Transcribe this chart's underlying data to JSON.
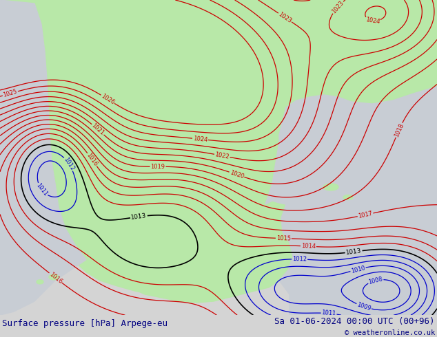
{
  "title_left": "Surface pressure [hPa] Arpege-eu",
  "title_right": "Sa 01-06-2024 00:00 UTC (00+96)",
  "copyright": "© weatheronline.co.uk",
  "bg_color": "#d4d4d4",
  "land_color": "#b8e8a8",
  "ocean_color": "#c8cdd4",
  "bottom_bar_color": "#e0e0e0",
  "bottom_text_color": "#000080",
  "text_color_red": "#cc0000",
  "text_color_blue": "#0000cc",
  "text_color_black": "#000000",
  "figsize": [
    6.34,
    4.9
  ],
  "dpi": 100
}
